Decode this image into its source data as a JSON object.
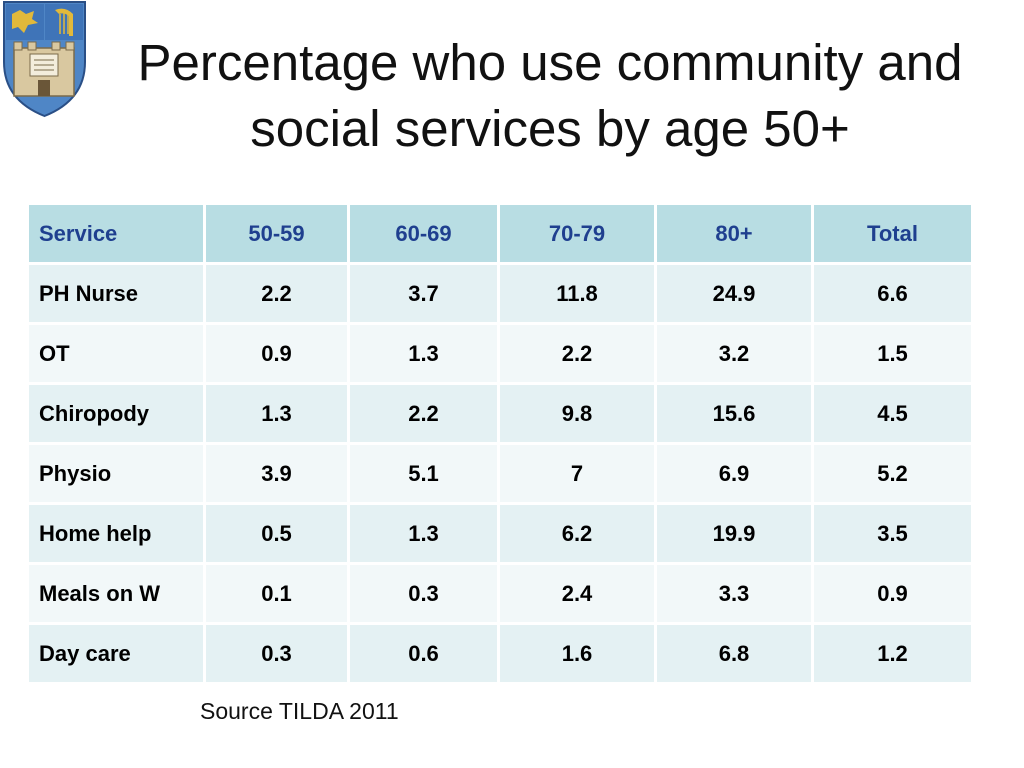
{
  "title": "Percentage who use community and social services by age 50+",
  "table": {
    "headers": [
      "Service",
      "50-59",
      "60-69",
      "70-79",
      "80+",
      "Total"
    ],
    "rows": [
      [
        "PH Nurse",
        "2.2",
        "3.7",
        "11.8",
        "24.9",
        "6.6"
      ],
      [
        "OT",
        "0.9",
        "1.3",
        "2.2",
        "3.2",
        "1.5"
      ],
      [
        "Chiropody",
        "1.3",
        "2.2",
        "9.8",
        "15.6",
        "4.5"
      ],
      [
        "Physio",
        "3.9",
        "5.1",
        "7",
        "6.9",
        "5.2"
      ],
      [
        "Home help",
        "0.5",
        "1.3",
        "6.2",
        "19.9",
        "3.5"
      ],
      [
        "Meals on W",
        "0.1",
        "0.3",
        "2.4",
        "3.3",
        "0.9"
      ],
      [
        "Day care",
        "0.3",
        "0.6",
        "1.6",
        "6.8",
        "1.2"
      ]
    ]
  },
  "source": "Source TILDA 2011",
  "colors": {
    "header_bg": "#b8dde3",
    "header_text": "#1f3f8f",
    "row_odd": "#e4f1f3",
    "row_even": "#f2f8f9"
  }
}
